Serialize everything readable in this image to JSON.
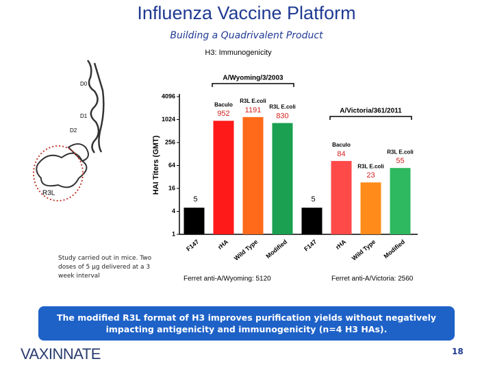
{
  "header": {
    "title": "Influenza Vaccine Platform",
    "subtitle": "Building a Quadrivalent Product"
  },
  "figure": {
    "labels": [
      "D0",
      "D1",
      "D2",
      "R3L"
    ]
  },
  "note": "Study carried out in mice. Two doses of 5 μg delivered at a 3 week interval",
  "chart_data": {
    "type": "bar",
    "title": "H3: Immunogenicity",
    "y_label": "HAI Titers (GMT)",
    "log_scale": true,
    "log_base": 2,
    "ylim": [
      1,
      4096
    ],
    "yticks": [
      1,
      4,
      16,
      64,
      256,
      1024,
      4096
    ],
    "categories": [
      "F147",
      "rHA",
      "Wild Type",
      "Modified",
      "F147",
      "rHA",
      "Wild Type",
      "Modified"
    ],
    "values": [
      5,
      952,
      1191,
      830,
      5,
      84,
      23,
      55
    ],
    "colors": [
      "#000000",
      "#ff1a1a",
      "#ff6a1a",
      "#1aa050",
      "#000000",
      "#ff4a4a",
      "#ff8c1a",
      "#2eb860"
    ],
    "bar_notes": [
      null,
      "Baculo",
      "R3L E.coli",
      "R3L E.coli",
      null,
      "Baculo",
      "R3L E.coli",
      "R3L E.coli"
    ],
    "groups": [
      {
        "name": "A/Wyoming/3/2003",
        "footnote": "Ferret anti-A/Wyoming: 5120"
      },
      {
        "name": "A/Victoria/361/2011",
        "footnote": "Ferret anti-A/Victoria: 2560"
      }
    ]
  },
  "banner": "The modified R3L format of H3 improves purification yields without negatively impacting antigenicity and immunogenicity (n=4 H3 HAs).",
  "footer": {
    "logo": "VAXINNATE",
    "page": "18"
  }
}
